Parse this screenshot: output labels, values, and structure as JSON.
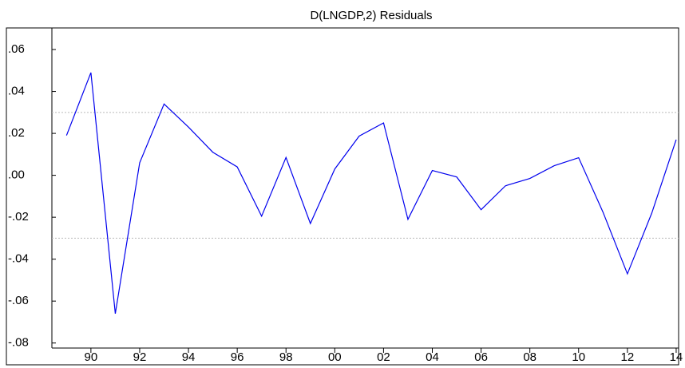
{
  "chart_data": {
    "type": "line",
    "title": "D(LNGDP,2) Residuals",
    "x": [
      1989,
      1990,
      1991,
      1992,
      1993,
      1994,
      1995,
      1996,
      1997,
      1998,
      1999,
      2000,
      2001,
      2002,
      2003,
      2004,
      2005,
      2006,
      2007,
      2008,
      2009,
      2010,
      2011,
      2012,
      2013,
      2014
    ],
    "series": [
      {
        "color": "#0000ee",
        "values": [
          0.019,
          0.049,
          -0.066,
          0.006,
          0.034,
          0.023,
          0.011,
          0.004,
          -0.0195,
          0.0085,
          -0.023,
          0.003,
          0.0187,
          0.025,
          -0.021,
          0.0023,
          -0.0008,
          -0.0164,
          -0.005,
          -0.0015,
          0.0046,
          0.0084,
          -0.0176,
          -0.047,
          -0.018,
          0.017
        ]
      }
    ],
    "xlim": [
      1988.4,
      2014.1
    ],
    "xticks": [
      {
        "value": 1990,
        "label": "90"
      },
      {
        "value": 1992,
        "label": "92"
      },
      {
        "value": 1994,
        "label": "94"
      },
      {
        "value": 1996,
        "label": "96"
      },
      {
        "value": 1998,
        "label": "98"
      },
      {
        "value": 2000,
        "label": "00"
      },
      {
        "value": 2002,
        "label": "02"
      },
      {
        "value": 2004,
        "label": "04"
      },
      {
        "value": 2006,
        "label": "06"
      },
      {
        "value": 2008,
        "label": "08"
      },
      {
        "value": 2010,
        "label": "10"
      },
      {
        "value": 2012,
        "label": "12"
      },
      {
        "value": 2014,
        "label": "14"
      }
    ],
    "ylim": [
      -0.0824,
      0.0703
    ],
    "yticks": [
      {
        "value": 0.06,
        "label": ".06"
      },
      {
        "value": 0.04,
        "label": ".04"
      },
      {
        "value": 0.02,
        "label": ".02"
      },
      {
        "value": 0,
        "label": ".00"
      },
      {
        "value": -0.02,
        "label": "-.02"
      },
      {
        "value": -0.04,
        "label": "-.04"
      },
      {
        "value": -0.06,
        "label": "-.06"
      },
      {
        "value": -0.08,
        "label": "-.08"
      }
    ],
    "reference_lines": [
      0.03,
      -0.03
    ]
  }
}
